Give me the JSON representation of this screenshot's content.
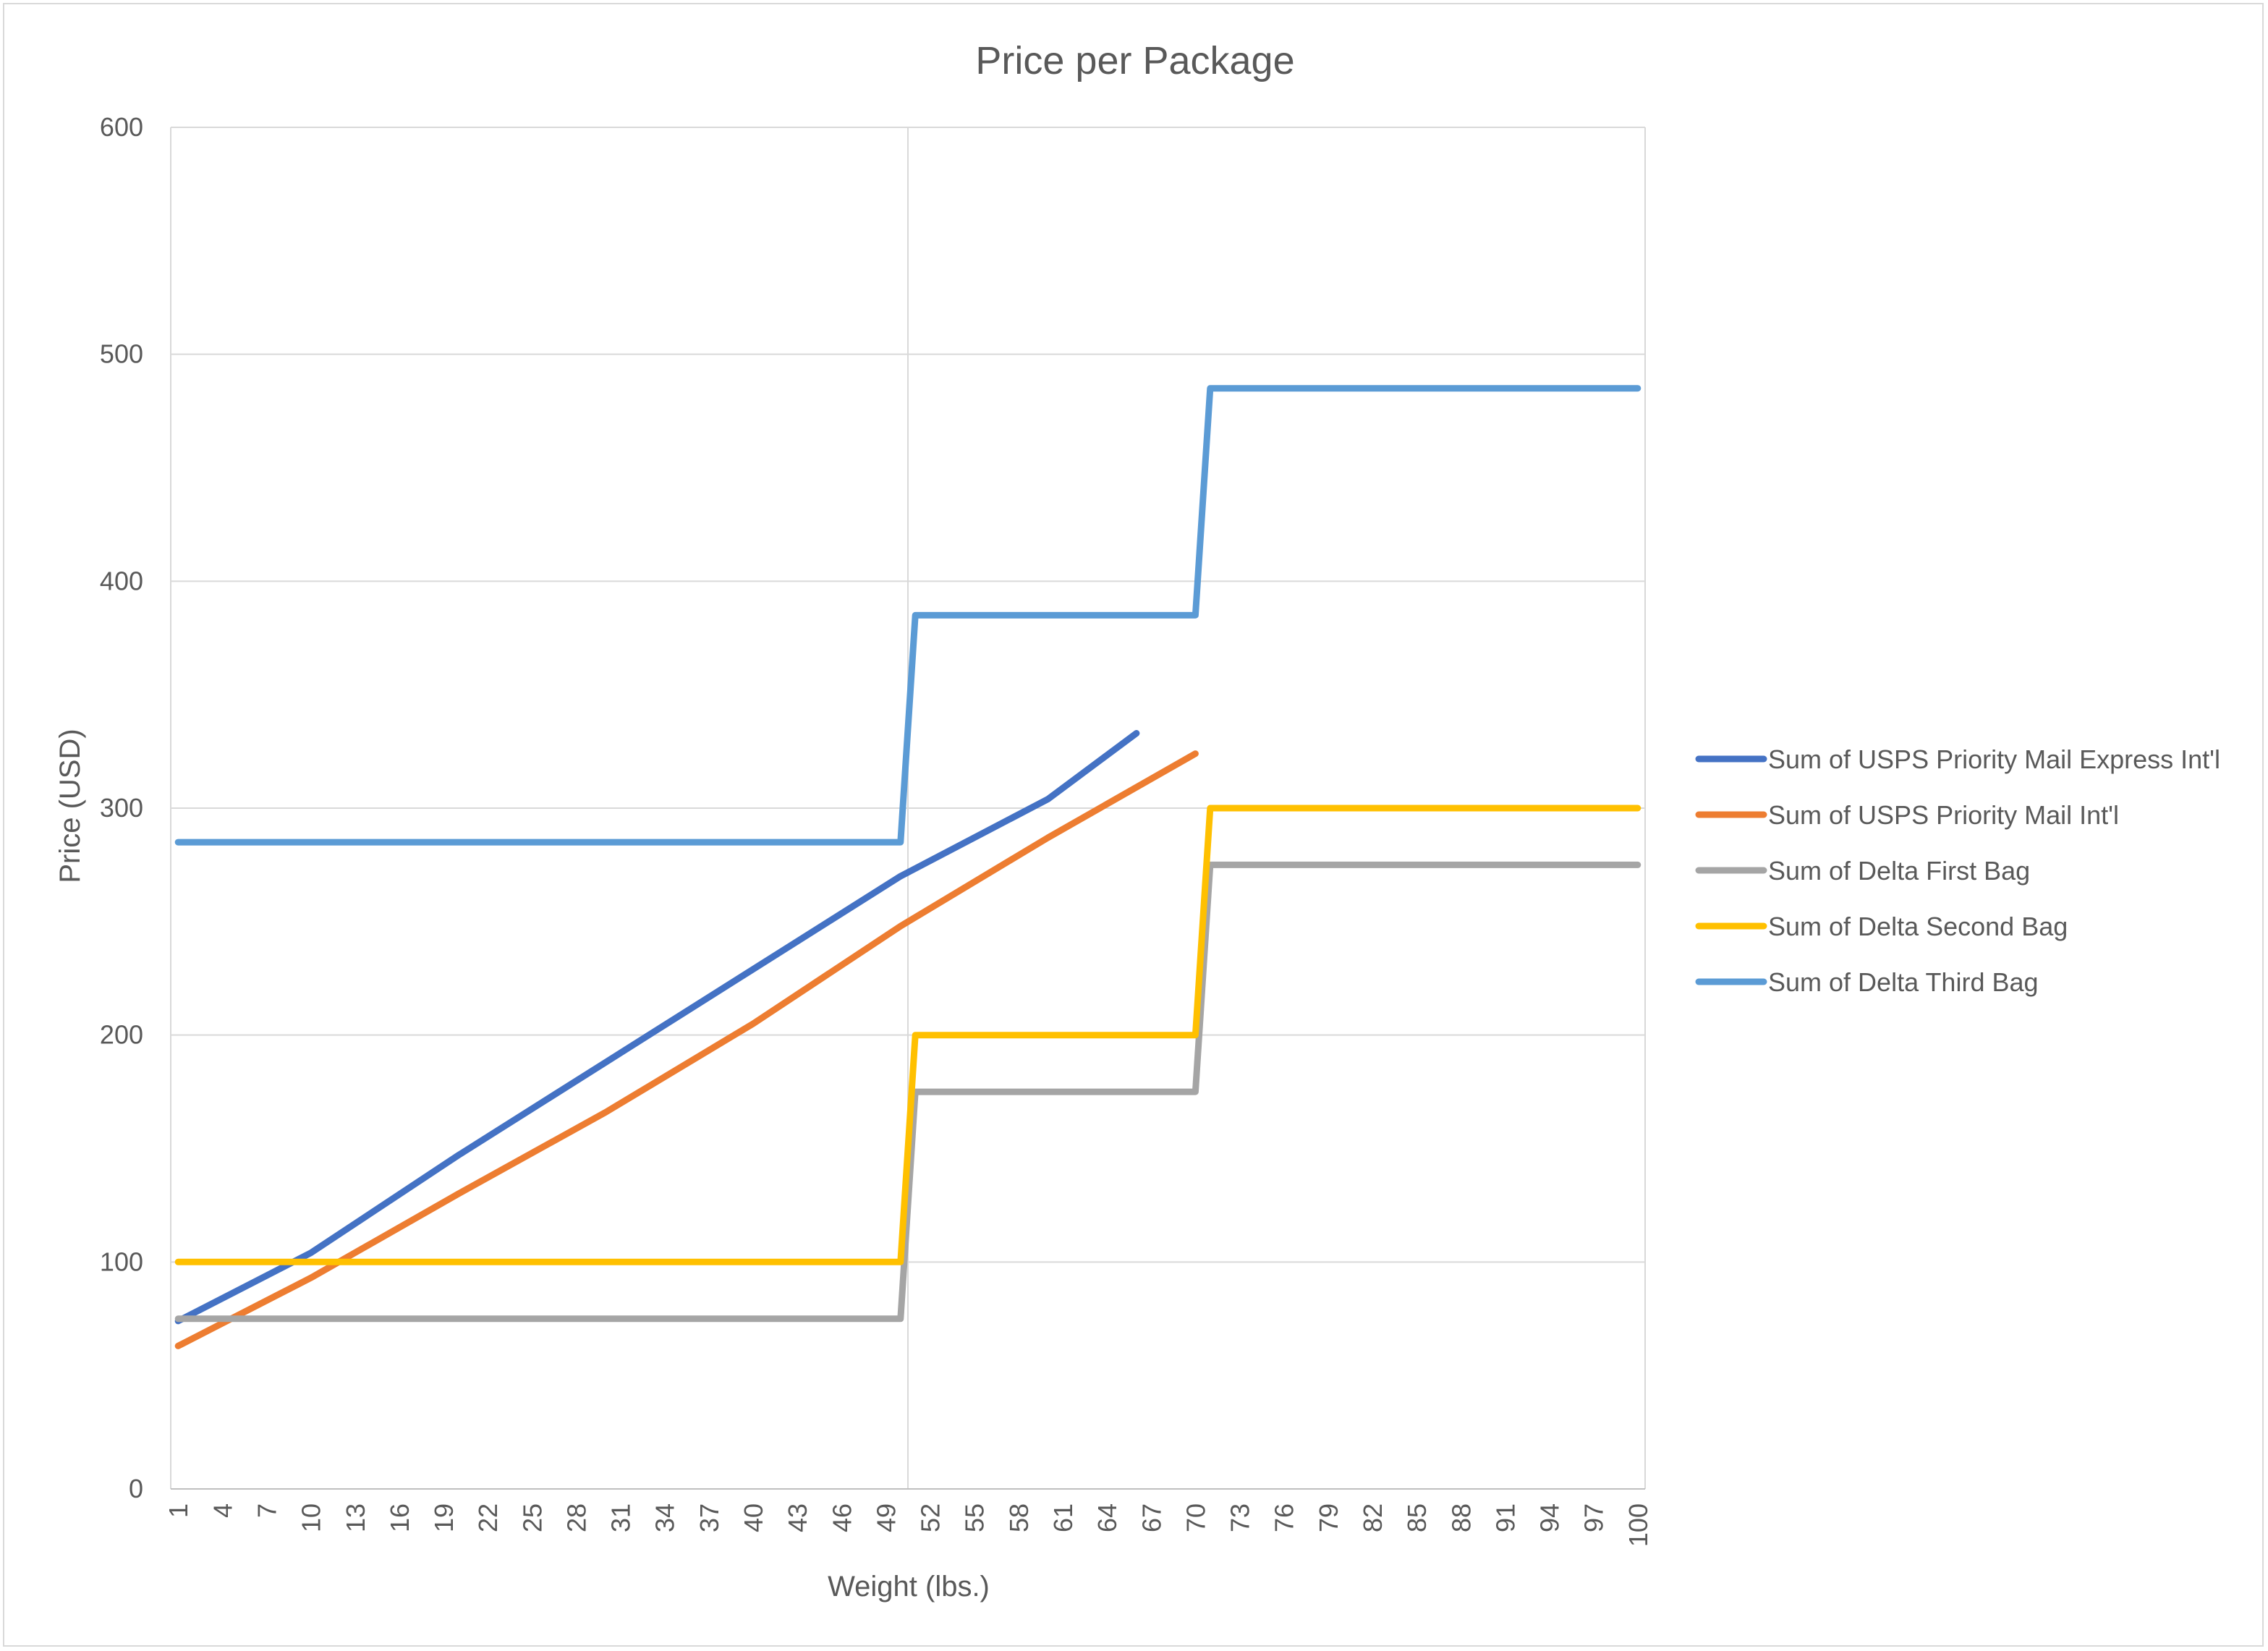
{
  "chart_data": {
    "type": "line",
    "title": "Price per Package",
    "xlabel": "Weight (lbs.)",
    "ylabel": "Price (USD)",
    "x_range": [
      1,
      100
    ],
    "ylim": [
      0,
      600
    ],
    "y_ticks": [
      0,
      100,
      200,
      300,
      400,
      500,
      600
    ],
    "x_tick_labels": [
      1,
      4,
      7,
      10,
      13,
      16,
      19,
      22,
      25,
      28,
      31,
      34,
      37,
      40,
      43,
      46,
      49,
      52,
      55,
      58,
      61,
      64,
      67,
      70,
      73,
      76,
      79,
      82,
      85,
      88,
      91,
      94,
      97,
      100
    ],
    "grid": "horizontal gridlines, plus a vertical gridline at 50",
    "legend_position": "right",
    "series": [
      {
        "name": "Sum of USPS Priority Mail Express Int'l",
        "color": "#4472c4",
        "points": [
          [
            1,
            74
          ],
          [
            10,
            104
          ],
          [
            20,
            147
          ],
          [
            30,
            188
          ],
          [
            40,
            229
          ],
          [
            50,
            270
          ],
          [
            60,
            304
          ],
          [
            66,
            333
          ]
        ]
      },
      {
        "name": "Sum of USPS Priority Mail Int'l",
        "color": "#ed7d31",
        "points": [
          [
            1,
            63
          ],
          [
            10,
            93
          ],
          [
            20,
            130
          ],
          [
            30,
            166
          ],
          [
            40,
            205
          ],
          [
            50,
            248
          ],
          [
            60,
            287
          ],
          [
            70,
            324
          ]
        ]
      },
      {
        "name": "Sum of Delta First Bag",
        "color": "#a5a5a5",
        "points": [
          [
            1,
            75
          ],
          [
            50,
            75
          ],
          [
            51,
            175
          ],
          [
            70,
            175
          ],
          [
            71,
            275
          ],
          [
            100,
            275
          ]
        ]
      },
      {
        "name": "Sum of Delta Second Bag",
        "color": "#ffc000",
        "points": [
          [
            1,
            100
          ],
          [
            50,
            100
          ],
          [
            51,
            200
          ],
          [
            70,
            200
          ],
          [
            71,
            300
          ],
          [
            100,
            300
          ]
        ]
      },
      {
        "name": "Sum of Delta Third Bag",
        "color": "#5b9bd5",
        "points": [
          [
            1,
            285
          ],
          [
            50,
            285
          ],
          [
            51,
            385
          ],
          [
            70,
            385
          ],
          [
            71,
            485
          ],
          [
            100,
            485
          ]
        ]
      }
    ]
  }
}
